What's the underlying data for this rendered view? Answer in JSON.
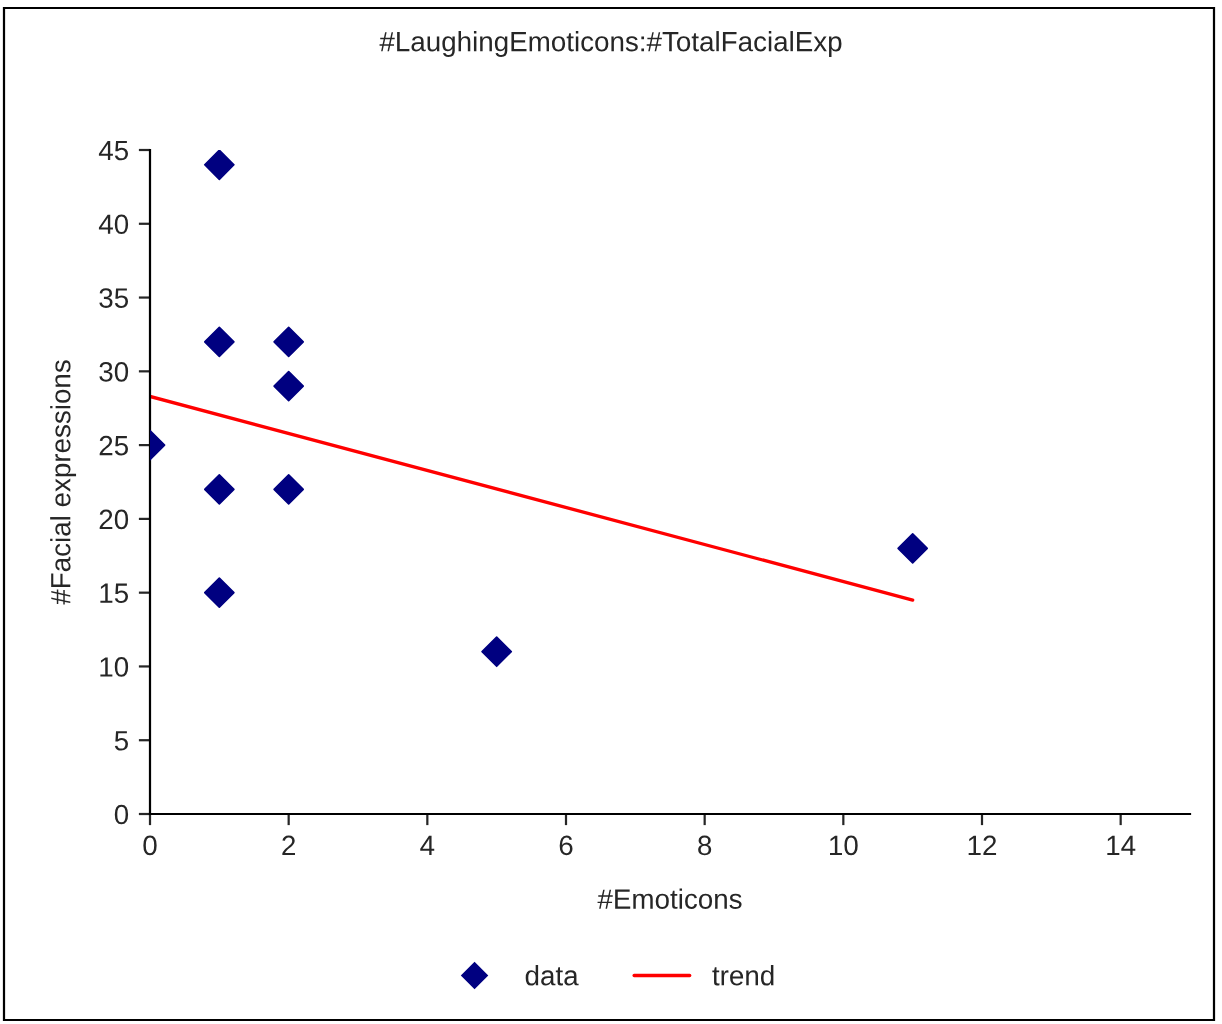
{
  "chart_data": {
    "type": "scatter",
    "title": "#LaughingEmoticons:#TotalFacialExp",
    "xlabel": "#Emoticons",
    "ylabel": "#Facial expressions",
    "series": [
      {
        "name": "data",
        "color": "#000080",
        "marker": "diamond",
        "x": [
          0,
          1,
          1,
          1,
          1,
          2,
          2,
          2,
          5,
          11
        ],
        "values": [
          25,
          44,
          32,
          22,
          15,
          32,
          29,
          22,
          11,
          18
        ]
      },
      {
        "name": "trend",
        "type": "line",
        "color": "#ff0000",
        "x": [
          0,
          11
        ],
        "values": [
          28.3,
          14.5
        ]
      }
    ],
    "xlim": [
      0,
      15
    ],
    "xticks": [
      0,
      2,
      4,
      6,
      8,
      10,
      12,
      14
    ],
    "ylim": [
      0,
      45
    ],
    "yticks": [
      0,
      5,
      10,
      15,
      20,
      25,
      30,
      35,
      40,
      45
    ],
    "grid": false,
    "legend": "bottom"
  }
}
